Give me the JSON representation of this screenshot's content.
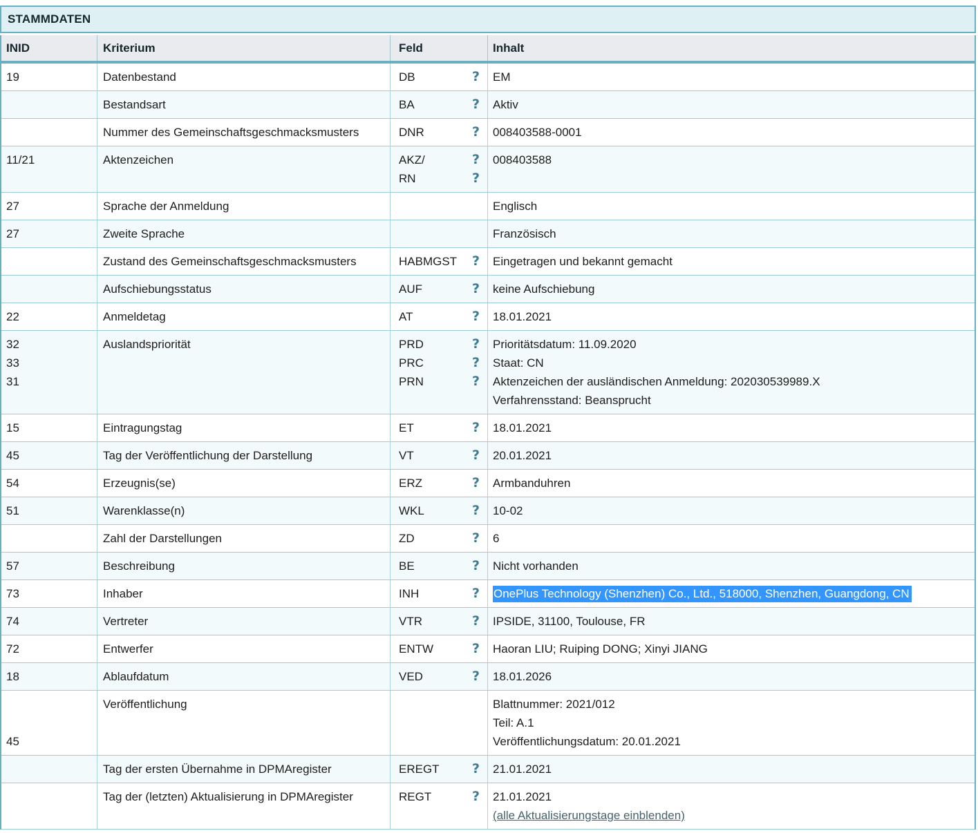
{
  "title": "STAMMDATEN",
  "columns": {
    "inid": "INID",
    "kriterium": "Kriterium",
    "feld": "Feld",
    "inhalt": "Inhalt"
  },
  "help_icon": "?",
  "colors": {
    "accent_teal": "#66b1c1",
    "caption_bg": "#dff0f4",
    "header_bg": "#e9ebee",
    "row_alt_bg": "#f2fafb",
    "help_icon": "#3e7d93",
    "selection_bg": "#3296fe",
    "selection_text": "#ffffff",
    "link": "#44636e"
  },
  "rows": [
    {
      "inid": "19",
      "kriterium": "Datenbestand",
      "feld": "DB",
      "helps": 1,
      "inhalt": [
        {
          "text": "EM"
        }
      ]
    },
    {
      "inid": "",
      "kriterium": "Bestandsart",
      "feld": "BA",
      "helps": 1,
      "inhalt": [
        {
          "text": "Aktiv"
        }
      ]
    },
    {
      "inid": "",
      "kriterium": "Nummer des Gemeinschaftsgeschmacksmusters",
      "feld": "DNR",
      "helps": 1,
      "inhalt": [
        {
          "text": "008403588-0001"
        }
      ]
    },
    {
      "inid": "11/21",
      "kriterium": "Aktenzeichen",
      "feld": "AKZ/\nRN",
      "helps": 2,
      "inhalt": [
        {
          "text": "008403588"
        }
      ]
    },
    {
      "inid": "27",
      "kriterium": "Sprache der Anmeldung",
      "feld": "",
      "helps": 0,
      "inhalt": [
        {
          "text": "Englisch"
        }
      ]
    },
    {
      "inid": "27",
      "kriterium": "Zweite Sprache",
      "feld": "",
      "helps": 0,
      "inhalt": [
        {
          "text": "Französisch"
        }
      ]
    },
    {
      "inid": "",
      "kriterium": "Zustand des Gemeinschaftsgeschmacksmusters",
      "feld": "HABMGST",
      "helps": 1,
      "inhalt": [
        {
          "text": "Eingetragen und bekannt gemacht"
        }
      ]
    },
    {
      "inid": "",
      "kriterium": "Aufschiebungsstatus",
      "feld": "AUF",
      "helps": 1,
      "inhalt": [
        {
          "text": "keine Aufschiebung"
        }
      ]
    },
    {
      "inid": "22",
      "kriterium": "Anmeldetag",
      "feld": "AT",
      "helps": 1,
      "inhalt": [
        {
          "text": "18.01.2021"
        }
      ]
    },
    {
      "inid": "32\n33\n31",
      "kriterium": "Auslandspriorität",
      "feld": "PRD\nPRC\nPRN",
      "helps": 3,
      "inhalt": [
        {
          "text": "Prioritätsdatum: 11.09.2020"
        },
        {
          "text": "Staat: CN"
        },
        {
          "text": "Aktenzeichen der ausländischen Anmeldung: 202030539989.X"
        },
        {
          "text": "Verfahrensstand: Beansprucht"
        }
      ]
    },
    {
      "inid": "15",
      "kriterium": "Eintragungstag",
      "feld": "ET",
      "helps": 1,
      "inhalt": [
        {
          "text": "18.01.2021"
        }
      ]
    },
    {
      "inid": "45",
      "kriterium": "Tag der Veröffentlichung der Darstellung",
      "feld": "VT",
      "helps": 1,
      "inhalt": [
        {
          "text": "20.01.2021"
        }
      ]
    },
    {
      "inid": "54",
      "kriterium": "Erzeugnis(se)",
      "feld": "ERZ",
      "helps": 1,
      "inhalt": [
        {
          "text": "Armbanduhren"
        }
      ]
    },
    {
      "inid": "51",
      "kriterium": "Warenklasse(n)",
      "feld": "WKL",
      "helps": 1,
      "inhalt": [
        {
          "text": "10-02"
        }
      ]
    },
    {
      "inid": "",
      "kriterium": "Zahl der Darstellungen",
      "feld": "ZD",
      "helps": 1,
      "inhalt": [
        {
          "text": "6"
        }
      ]
    },
    {
      "inid": "57",
      "kriterium": "Beschreibung",
      "feld": "BE",
      "helps": 1,
      "inhalt": [
        {
          "text": "Nicht vorhanden"
        }
      ]
    },
    {
      "inid": "73",
      "kriterium": "Inhaber",
      "feld": "INH",
      "helps": 1,
      "inhalt": [
        {
          "text": "OnePlus Technology (Shenzhen) Co., Ltd., 518000, Shenzhen, Guangdong, CN",
          "selected": true
        }
      ]
    },
    {
      "inid": "74",
      "kriterium": "Vertreter",
      "feld": "VTR",
      "helps": 1,
      "inhalt": [
        {
          "text": "IPSIDE, 31100, Toulouse, FR"
        }
      ]
    },
    {
      "inid": "72",
      "kriterium": "Entwerfer",
      "feld": "ENTW",
      "helps": 1,
      "inhalt": [
        {
          "text": "Haoran LIU; Ruiping DONG; Xinyi JIANG"
        }
      ]
    },
    {
      "inid": "18",
      "kriterium": "Ablaufdatum",
      "feld": "VED",
      "helps": 1,
      "inhalt": [
        {
          "text": "18.01.2026"
        }
      ]
    },
    {
      "inid": "\n\n45",
      "kriterium": "Veröffentlichung",
      "feld": "",
      "helps": 0,
      "inhalt": [
        {
          "text": "Blattnummer: 2021/012"
        },
        {
          "text": "Teil: A.1"
        },
        {
          "text": "Veröffentlichungsdatum: 20.01.2021"
        }
      ]
    },
    {
      "inid": "",
      "kriterium": "Tag der ersten Übernahme in DPMAregister",
      "feld": "EREGT",
      "helps": 1,
      "inhalt": [
        {
          "text": "21.01.2021"
        }
      ]
    },
    {
      "inid": "",
      "kriterium": "Tag der (letzten) Aktualisierung in DPMAregister",
      "feld": "REGT",
      "helps": 1,
      "inhalt": [
        {
          "text": "21.01.2021"
        },
        {
          "text": "(alle Aktualisierungstage einblenden)",
          "link": true
        }
      ]
    }
  ]
}
